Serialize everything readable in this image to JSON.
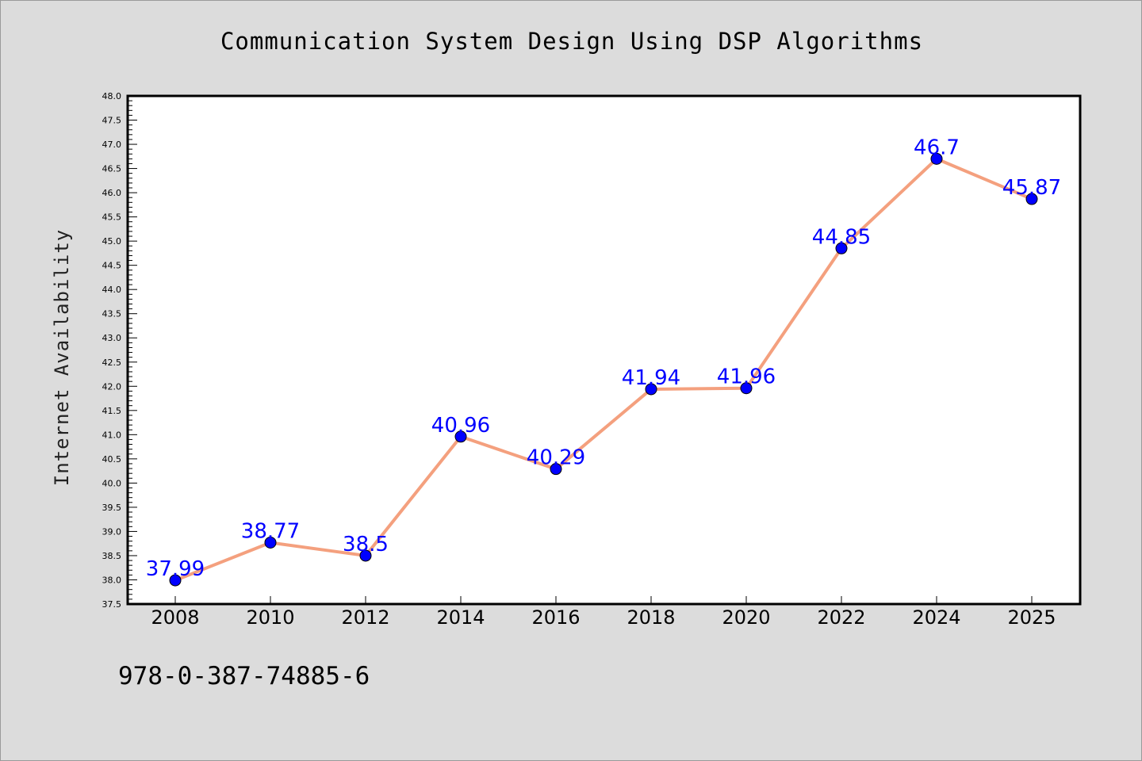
{
  "chart_data": {
    "type": "line",
    "title": "Communication System Design Using DSP Algorithms",
    "xlabel": "",
    "ylabel": "Internet Availability",
    "categories": [
      "2008",
      "2010",
      "2012",
      "2014",
      "2016",
      "2018",
      "2020",
      "2022",
      "2024",
      "2025"
    ],
    "series": [
      {
        "values": [
          37.99,
          38.77,
          38.5,
          40.96,
          40.29,
          41.94,
          41.96,
          44.85,
          46.7,
          45.87
        ],
        "data_labels": [
          "37.99",
          "38.77",
          "38.5",
          "40.96",
          "40.29",
          "41.94",
          "41.96",
          "44.85",
          "46.7",
          "45.87"
        ]
      }
    ],
    "ylim": [
      37.5,
      48.0
    ],
    "y_ticks": [
      "37.5",
      "38.0",
      "38.5",
      "39.0",
      "39.5",
      "40.0",
      "40.5",
      "41.0",
      "41.5",
      "42.0",
      "42.5",
      "43.0",
      "43.5",
      "44.0",
      "44.5",
      "45.0",
      "45.5",
      "46.0",
      "46.5",
      "47.0",
      "47.5",
      "48.0"
    ],
    "grid": false,
    "legend": "none",
    "colors": {
      "line": "#f4a07e",
      "marker": "#0000ff",
      "marker_edge": "#000000",
      "data_label": "#0000ff",
      "plot_background": "#ffffff",
      "figure_background": "#dcdcdc"
    }
  },
  "footer": {
    "isbn": "978-0-387-74885-6"
  }
}
